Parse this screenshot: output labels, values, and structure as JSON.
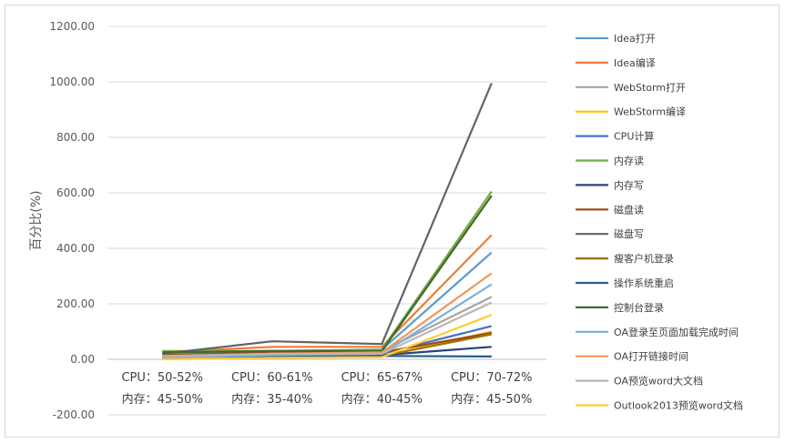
{
  "chart_data": {
    "type": "line",
    "ylabel": "百分比(%)",
    "ylim": [
      -200,
      1200
    ],
    "yticks": [
      "1200.00",
      "1000.00",
      "800.00",
      "600.00",
      "400.00",
      "200.00",
      "0.00",
      "-200.00"
    ],
    "grid": true,
    "legend_position": "right",
    "categories": [
      {
        "line1": "CPU：50-52%",
        "line2": "内存：45-50%"
      },
      {
        "line1": "CPU：60-61%",
        "line2": "内存：35-40%"
      },
      {
        "line1": "CPU：65-67%",
        "line2": "内存：40-45%"
      },
      {
        "line1": "CPU：70-72%",
        "line2": "内存：45-50%"
      }
    ],
    "series": [
      {
        "name": "Idea打开",
        "color": "#5b9bd5",
        "values": [
          20,
          30,
          35,
          385
        ]
      },
      {
        "name": "Idea编译",
        "color": "#ed7d31",
        "values": [
          25,
          45,
          45,
          448
        ]
      },
      {
        "name": "WebStorm打开",
        "color": "#a5a5a5",
        "values": [
          22,
          30,
          30,
          225
        ]
      },
      {
        "name": "WebStorm编译",
        "color": "#ffc000",
        "values": [
          5,
          10,
          10,
          100
        ]
      },
      {
        "name": "CPU计算",
        "color": "#4472c4",
        "values": [
          8,
          15,
          20,
          120
        ]
      },
      {
        "name": "内存读",
        "color": "#70ad47",
        "values": [
          30,
          30,
          35,
          605
        ]
      },
      {
        "name": "内存写",
        "color": "#264478",
        "values": [
          10,
          15,
          15,
          45
        ]
      },
      {
        "name": "磁盘读",
        "color": "#9e480e",
        "values": [
          15,
          25,
          25,
          95
        ]
      },
      {
        "name": "磁盘写",
        "color": "#636363",
        "values": [
          20,
          65,
          55,
          995
        ]
      },
      {
        "name": "瘦客户机登录",
        "color": "#997300",
        "values": [
          5,
          10,
          12,
          90
        ]
      },
      {
        "name": "操作系统重启",
        "color": "#255e91",
        "values": [
          8,
          10,
          12,
          10
        ]
      },
      {
        "name": "控制台登录",
        "color": "#43682b",
        "values": [
          25,
          30,
          30,
          590
        ]
      },
      {
        "name": "OA登录至页面加载完成时间",
        "color": "#7cafdd",
        "values": [
          5,
          15,
          20,
          270
        ]
      },
      {
        "name": "OA打开链接时间",
        "color": "#f1975a",
        "values": [
          10,
          20,
          25,
          310
        ]
      },
      {
        "name": "OA预览word大文档",
        "color": "#b7b7b7",
        "values": [
          12,
          20,
          20,
          205
        ]
      },
      {
        "name": "Outlook2013预览word文档",
        "color": "#ffcd33",
        "values": [
          0,
          5,
          8,
          160
        ]
      }
    ]
  }
}
